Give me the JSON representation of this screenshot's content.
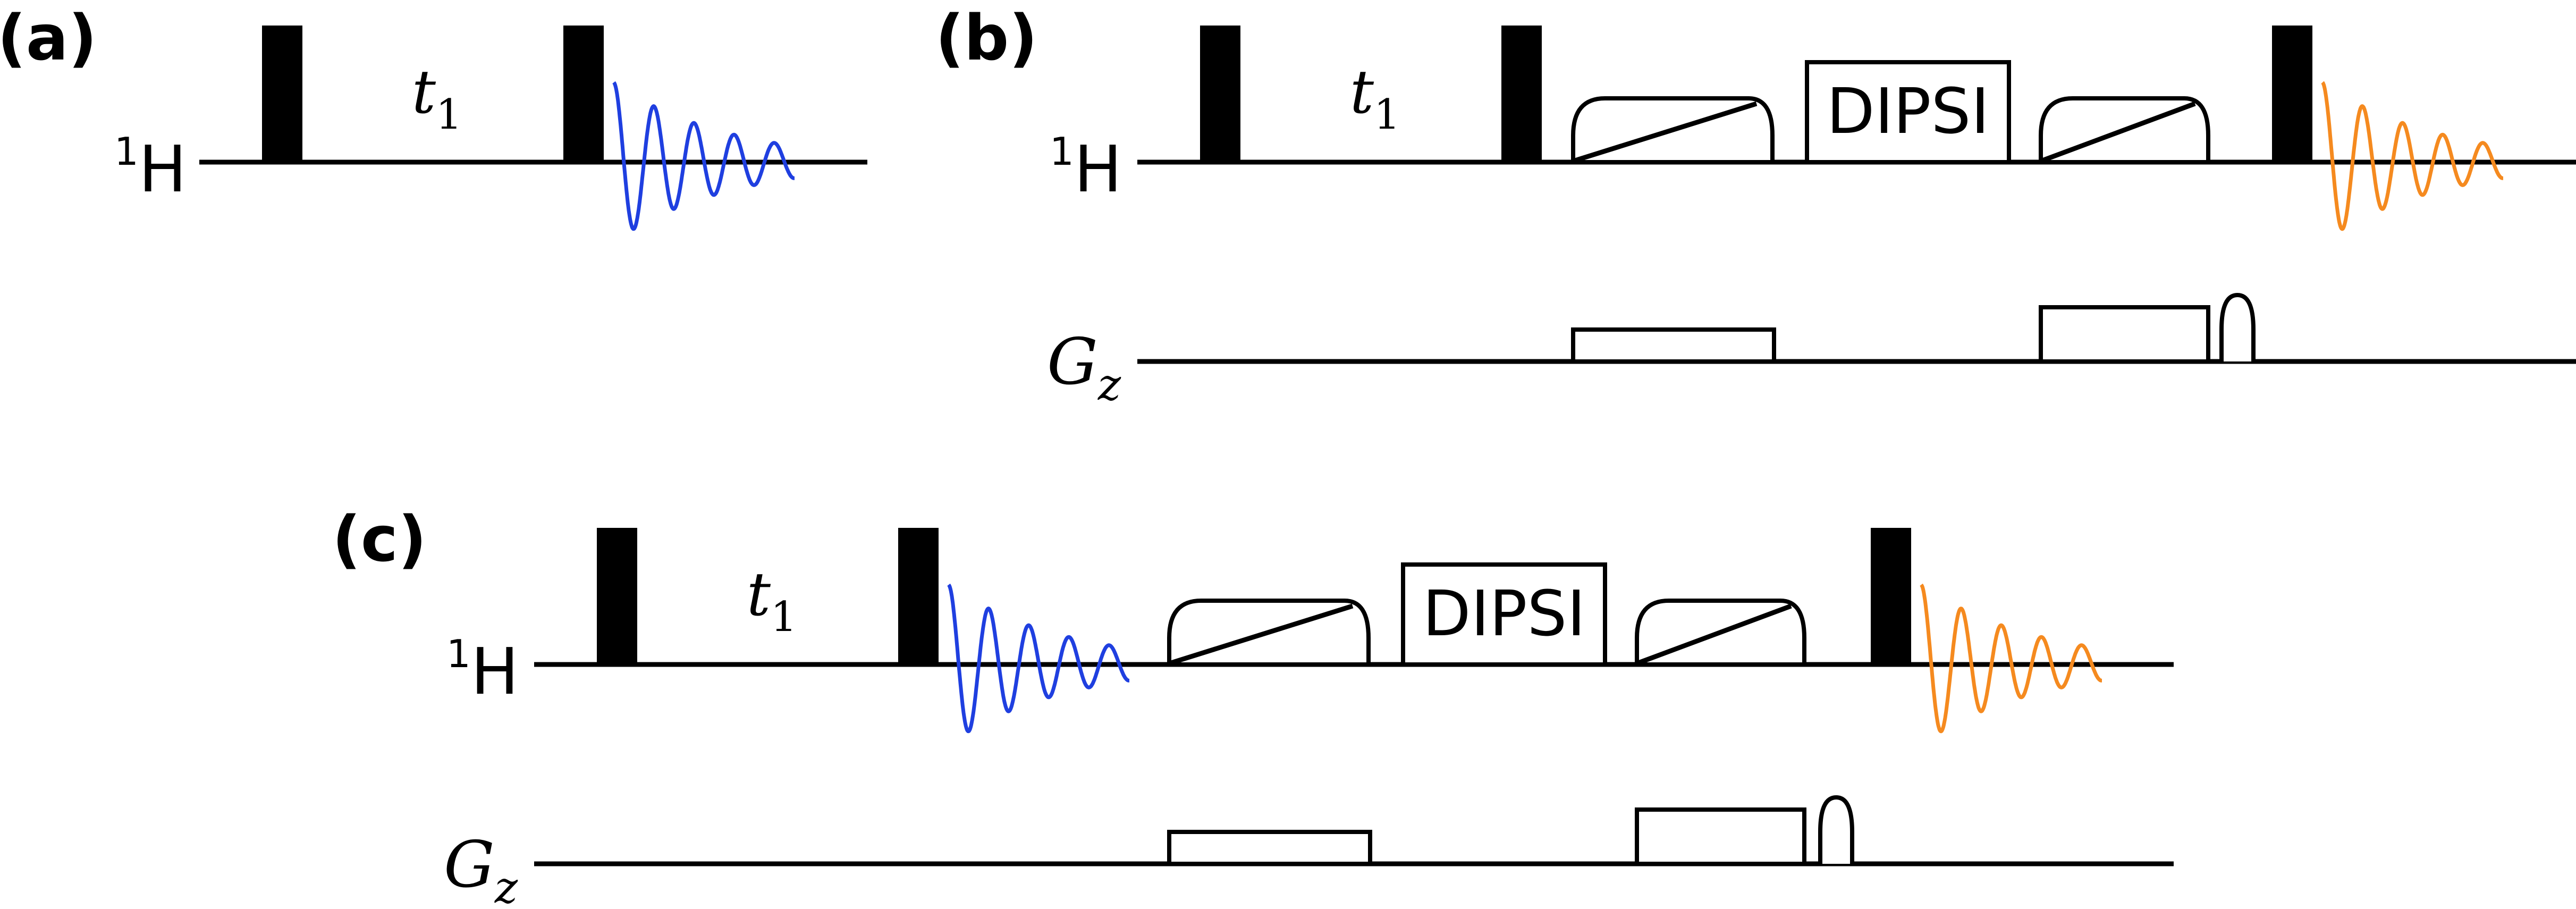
{
  "colors": {
    "fid_blue": "#1f3fe0",
    "fid_orange": "#f58a1f",
    "ink": "#000000"
  },
  "panels": {
    "a": {
      "label": "(a)",
      "channel_h": {
        "main": "H",
        "sup": "1"
      },
      "delay": {
        "main": "t",
        "sub": "1"
      }
    },
    "b": {
      "label": "(b)",
      "channel_h": {
        "main": "H",
        "sup": "1"
      },
      "delay": {
        "main": "t",
        "sub": "1"
      },
      "mixing": "DIPSI",
      "channel_g": {
        "main": "G",
        "sub": "z"
      }
    },
    "c": {
      "label": "(c)",
      "channel_h": {
        "main": "H",
        "sup": "1"
      },
      "delay": {
        "main": "t",
        "sub": "1"
      },
      "mixing": "DIPSI",
      "channel_g": {
        "main": "G",
        "sub": "z"
      }
    }
  }
}
